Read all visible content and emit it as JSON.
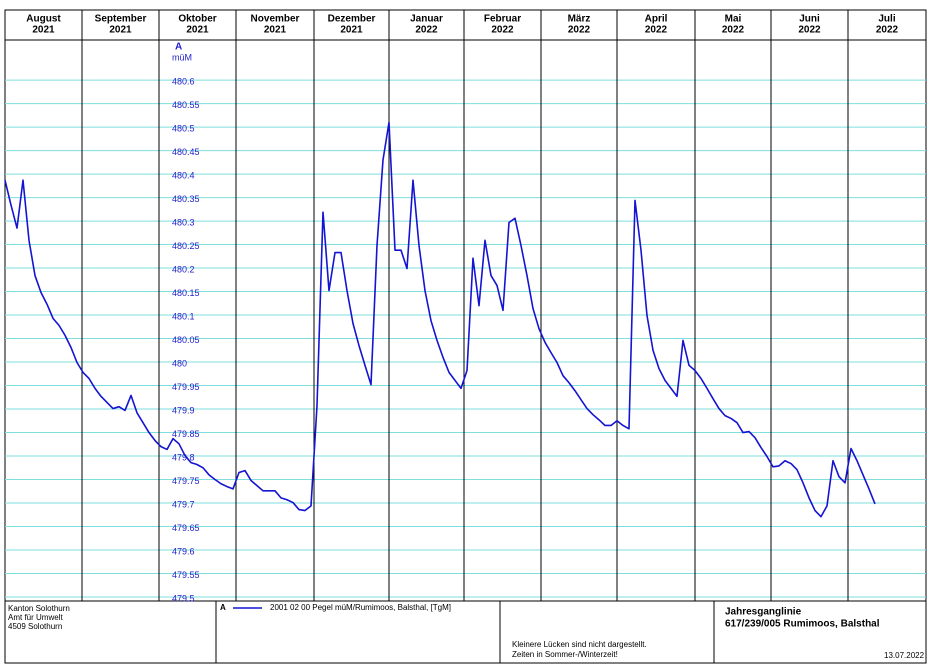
{
  "chart_data": {
    "type": "line",
    "months": [
      {
        "name": "August",
        "year": "2021"
      },
      {
        "name": "September",
        "year": "2021"
      },
      {
        "name": "Oktober",
        "year": "2021"
      },
      {
        "name": "November",
        "year": "2021"
      },
      {
        "name": "Dezember",
        "year": "2021"
      },
      {
        "name": "Januar",
        "year": "2022"
      },
      {
        "name": "Februar",
        "year": "2022"
      },
      {
        "name": "März",
        "year": "2022"
      },
      {
        "name": "April",
        "year": "2022"
      },
      {
        "name": "Mai",
        "year": "2022"
      },
      {
        "name": "Juni",
        "year": "2022"
      },
      {
        "name": "Juli",
        "year": "2022"
      }
    ],
    "ylabel": "A",
    "yunit": "müM",
    "ylim": [
      479.4915,
      480.6853
    ],
    "yticks": [
      479.5,
      479.55,
      479.6,
      479.65,
      479.7,
      479.75,
      479.8,
      479.85,
      479.9,
      479.95,
      480,
      480.05,
      480.1,
      480.15,
      480.2,
      480.25,
      480.3,
      480.35,
      480.4,
      480.45,
      480.5,
      480.55,
      480.6
    ],
    "grid": true,
    "series": [
      {
        "legend_marker": "A",
        "name": "2001 02 00  Pegel müM/Rumimoos, Balsthal, [TgM]",
        "color": "#1414d2",
        "values": [
          480.387,
          480.334,
          480.285,
          480.387,
          480.259,
          480.184,
          480.148,
          480.123,
          480.093,
          480.078,
          480.057,
          480.031,
          479.999,
          479.978,
          479.965,
          479.944,
          479.927,
          479.914,
          479.901,
          479.905,
          479.897,
          479.929,
          479.892,
          479.871,
          479.85,
          479.833,
          479.82,
          479.814,
          479.837,
          479.826,
          479.801,
          479.786,
          479.782,
          479.775,
          479.76,
          479.75,
          479.741,
          479.735,
          479.73,
          479.765,
          479.769,
          479.748,
          479.737,
          479.726,
          479.726,
          479.726,
          479.711,
          479.707,
          479.701,
          479.686,
          479.684,
          479.694,
          479.907,
          480.319,
          480.152,
          480.233,
          480.233,
          480.152,
          480.082,
          480.035,
          479.993,
          479.952,
          480.248,
          480.43,
          480.51,
          480.238,
          480.238,
          480.199,
          480.387,
          480.248,
          480.152,
          480.088,
          480.046,
          480.01,
          479.978,
          479.961,
          479.944,
          479.982,
          480.221,
          480.12,
          480.259,
          480.184,
          480.163,
          480.11,
          480.297,
          480.306,
          480.248,
          480.184,
          480.114,
          480.071,
          480.042,
          480.02,
          479.999,
          479.971,
          479.956,
          479.939,
          479.92,
          479.901,
          479.888,
          479.877,
          479.865,
          479.865,
          479.875,
          479.865,
          479.858,
          480.344,
          480.238,
          480.099,
          480.025,
          479.986,
          479.961,
          479.944,
          479.927,
          480.046,
          479.993,
          479.982,
          479.965,
          479.944,
          479.922,
          479.901,
          479.886,
          479.88,
          479.871,
          479.85,
          479.852,
          479.839,
          479.818,
          479.799,
          479.777,
          479.779,
          479.79,
          479.784,
          479.771,
          479.743,
          479.711,
          479.684,
          479.671,
          479.694,
          479.79,
          479.756,
          479.743,
          479.816,
          479.79,
          479.76,
          479.73,
          479.698
        ]
      }
    ],
    "organisation": [
      "Kanton Solothurn",
      "Amt für Umwelt",
      "4509 Solothurn"
    ],
    "notes": [
      "Kleinere Lücken sind nicht dargestellt.",
      "Zeiten in Sommer-/Winterzeit!"
    ],
    "title": "Jahresganglinie",
    "subtitle": "617/239/005 Rumimoos, Balsthal",
    "date": "13.07.2022"
  }
}
